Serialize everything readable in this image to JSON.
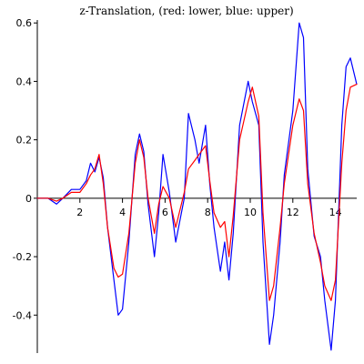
{
  "chart_data": {
    "type": "line",
    "title": "z-Translation, (red: lower, blue: upper)",
    "xlabel": "",
    "ylabel": "",
    "xlim": [
      0,
      15
    ],
    "ylim": [
      -0.53,
      0.61
    ],
    "grid": false,
    "legend": "none",
    "x_ticks": [
      2,
      4,
      6,
      8,
      10,
      12,
      14
    ],
    "y_ticks": [
      -0.4,
      -0.2,
      0,
      0.2,
      0.4,
      0.6
    ],
    "x_tick_labels": [
      "2",
      "4",
      "6",
      "8",
      "10",
      "12",
      "14"
    ],
    "y_tick_labels": [
      "-0.4",
      "-0.2",
      "0",
      "0.2",
      "0.4",
      "0.6"
    ],
    "series": [
      {
        "color": "#0000ff",
        "x": [
          0.0,
          0.5,
          0.9,
          1.2,
          1.6,
          2.0,
          2.3,
          2.5,
          2.7,
          2.9,
          3.1,
          3.3,
          3.6,
          3.8,
          4.0,
          4.3,
          4.6,
          4.8,
          5.0,
          5.2,
          5.5,
          5.7,
          5.9,
          6.2,
          6.5,
          6.9,
          7.1,
          7.4,
          7.6,
          7.9,
          8.1,
          8.3,
          8.6,
          8.8,
          9.0,
          9.2,
          9.5,
          9.9,
          10.1,
          10.4,
          10.6,
          10.9,
          11.1,
          11.4,
          11.6,
          12.0,
          12.3,
          12.5,
          12.7,
          13.0,
          13.3,
          13.5,
          13.8,
          14.0,
          14.3,
          14.5,
          14.7,
          15.0
        ],
        "y": [
          0.0,
          0.0,
          -0.02,
          0.0,
          0.03,
          0.03,
          0.06,
          0.12,
          0.09,
          0.14,
          0.07,
          -0.1,
          -0.28,
          -0.4,
          -0.38,
          -0.15,
          0.15,
          0.22,
          0.16,
          -0.02,
          -0.2,
          -0.05,
          0.15,
          0.02,
          -0.15,
          0.0,
          0.29,
          0.2,
          0.12,
          0.25,
          0.05,
          -0.1,
          -0.25,
          -0.15,
          -0.28,
          -0.12,
          0.25,
          0.4,
          0.33,
          0.25,
          -0.15,
          -0.5,
          -0.4,
          -0.15,
          0.08,
          0.3,
          0.6,
          0.55,
          0.1,
          -0.13,
          -0.2,
          -0.35,
          -0.52,
          -0.35,
          0.25,
          0.45,
          0.48,
          0.39
        ]
      },
      {
        "color": "#ff0000",
        "x": [
          0.0,
          0.5,
          0.9,
          1.2,
          1.6,
          2.0,
          2.3,
          2.5,
          2.7,
          2.9,
          3.1,
          3.3,
          3.6,
          3.8,
          4.0,
          4.3,
          4.6,
          4.8,
          5.0,
          5.2,
          5.5,
          5.7,
          5.9,
          6.2,
          6.5,
          6.9,
          7.1,
          7.4,
          7.6,
          7.9,
          8.1,
          8.3,
          8.6,
          8.8,
          9.0,
          9.2,
          9.5,
          9.9,
          10.1,
          10.4,
          10.6,
          10.9,
          11.1,
          11.4,
          11.6,
          12.0,
          12.3,
          12.5,
          12.7,
          13.0,
          13.3,
          13.5,
          13.8,
          14.0,
          14.3,
          14.5,
          14.7,
          15.0
        ],
        "y": [
          0.0,
          0.0,
          -0.01,
          0.0,
          0.02,
          0.02,
          0.05,
          0.08,
          0.1,
          0.15,
          0.05,
          -0.1,
          -0.24,
          -0.27,
          -0.26,
          -0.12,
          0.12,
          0.2,
          0.14,
          0.0,
          -0.12,
          -0.02,
          0.04,
          0.0,
          -0.1,
          0.02,
          0.1,
          0.13,
          0.15,
          0.18,
          0.06,
          -0.05,
          -0.1,
          -0.08,
          -0.2,
          -0.06,
          0.2,
          0.33,
          0.38,
          0.28,
          -0.05,
          -0.35,
          -0.3,
          -0.1,
          0.05,
          0.25,
          0.34,
          0.3,
          0.05,
          -0.12,
          -0.22,
          -0.3,
          -0.35,
          -0.28,
          0.12,
          0.3,
          0.38,
          0.39
        ]
      }
    ]
  }
}
